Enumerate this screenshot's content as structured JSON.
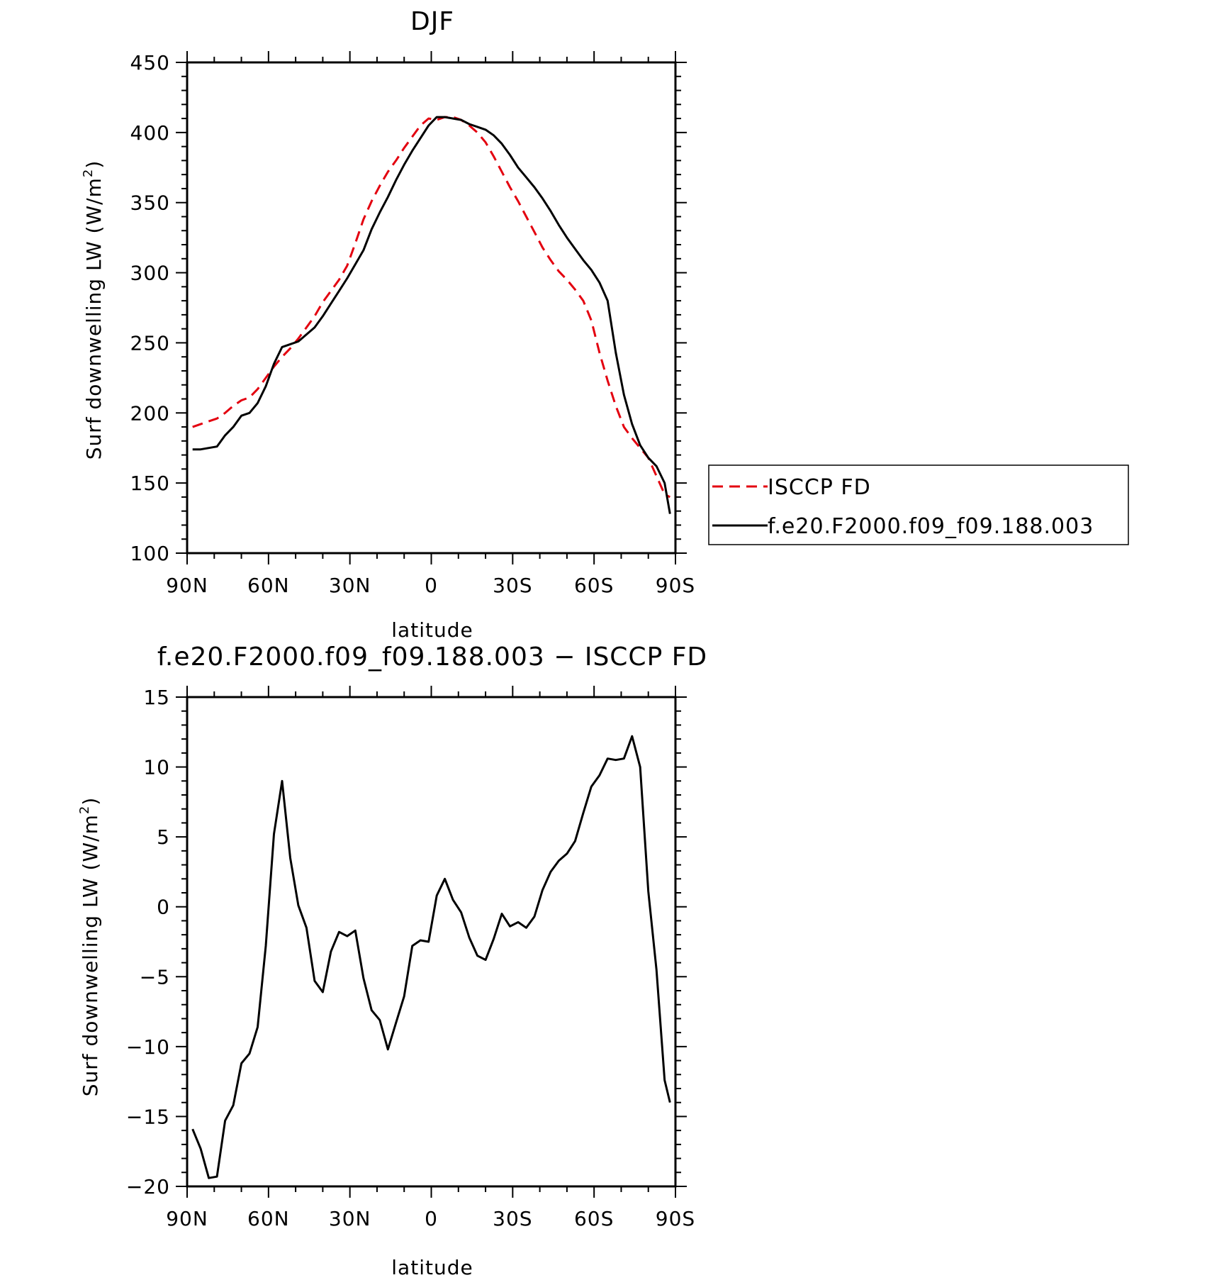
{
  "colors": {
    "model": "#000000",
    "obs": "#e3000f",
    "axes": "#000000"
  },
  "chart_data": [
    {
      "type": "line",
      "title": "DJF",
      "xlabel": "latitude",
      "ylabel_main": "Surf downwelling LW (W/m",
      "ylabel_sup": "2",
      "ylabel_end": ")",
      "xlim": [
        90,
        -90
      ],
      "ylim": [
        100,
        450
      ],
      "xticks": [
        {
          "v": 90,
          "label": "90N"
        },
        {
          "v": 60,
          "label": "60N"
        },
        {
          "v": 30,
          "label": "30N"
        },
        {
          "v": 0,
          "label": "0"
        },
        {
          "v": -30,
          "label": "30S"
        },
        {
          "v": -60,
          "label": "60S"
        },
        {
          "v": -90,
          "label": "90S"
        }
      ],
      "yticks": [
        {
          "v": 100,
          "label": "100"
        },
        {
          "v": 150,
          "label": "150"
        },
        {
          "v": 200,
          "label": "200"
        },
        {
          "v": 250,
          "label": "250"
        },
        {
          "v": 300,
          "label": "300"
        },
        {
          "v": 350,
          "label": "350"
        },
        {
          "v": 400,
          "label": "400"
        },
        {
          "v": 450,
          "label": "450"
        }
      ],
      "grid": false,
      "legend_position": "right of plot",
      "series": [
        {
          "name": "ISCCP FD",
          "color": "#e3000f",
          "dash": "dashed",
          "x": [
            88,
            85,
            82,
            79,
            76,
            73,
            70,
            67,
            64,
            61,
            58,
            55,
            52,
            49,
            46,
            43,
            40,
            37,
            34,
            31,
            28,
            25,
            22,
            19,
            16,
            13,
            10,
            7,
            4,
            1,
            -2,
            -5,
            -8,
            -11,
            -14,
            -17,
            -20,
            -23,
            -26,
            -29,
            -32,
            -35,
            -38,
            -41,
            -44,
            -47,
            -50,
            -53,
            -56,
            -59,
            -62,
            -65,
            -68,
            -71,
            -74,
            -77,
            -80,
            -83,
            -86,
            -88
          ],
          "y": [
            190,
            192,
            194,
            196,
            200,
            205,
            209,
            211,
            217,
            225,
            233,
            240,
            246,
            253,
            261,
            269,
            279,
            287,
            295,
            305,
            321,
            338,
            351,
            362,
            372,
            380,
            389,
            397,
            405,
            410,
            409,
            411,
            411,
            409,
            405,
            400,
            393,
            383,
            372,
            361,
            351,
            340,
            329,
            318,
            309,
            301,
            295,
            288,
            280,
            266,
            243,
            223,
            205,
            190,
            182,
            175,
            168,
            155,
            142,
            140
          ]
        },
        {
          "name": "f.e20.F2000.f09_f09.188.003",
          "color": "#000000",
          "dash": "solid",
          "x": [
            88,
            85,
            82,
            79,
            76,
            73,
            70,
            67,
            64,
            61,
            58,
            55,
            52,
            49,
            46,
            43,
            40,
            37,
            34,
            31,
            28,
            25,
            22,
            19,
            16,
            13,
            10,
            7,
            4,
            1,
            -2,
            -5,
            -8,
            -11,
            -14,
            -17,
            -20,
            -23,
            -26,
            -29,
            -32,
            -35,
            -38,
            -41,
            -44,
            -47,
            -50,
            -53,
            -56,
            -59,
            -62,
            -65,
            -68,
            -71,
            -74,
            -77,
            -80,
            -83,
            -86,
            -88
          ],
          "y": [
            174,
            174,
            175,
            176,
            184,
            190,
            198,
            200,
            207,
            219,
            235,
            247,
            249,
            251,
            256,
            261,
            269,
            278,
            287,
            296,
            306,
            316,
            331,
            343,
            354,
            366,
            377,
            387,
            396,
            405,
            411,
            411,
            410,
            409,
            406,
            404,
            402,
            398,
            392,
            384,
            375,
            368,
            361,
            353,
            344,
            334,
            325,
            317,
            309,
            302,
            293,
            280,
            243,
            213,
            192,
            177,
            168,
            162,
            150,
            128
          ]
        }
      ]
    },
    {
      "type": "line",
      "title": "f.e20.F2000.f09_f09.188.003 − ISCCP FD",
      "xlabel": "latitude",
      "ylabel_main": "Surf downwelling LW (W/m",
      "ylabel_sup": "2",
      "ylabel_end": ")",
      "xlim": [
        90,
        -90
      ],
      "ylim": [
        -20,
        15
      ],
      "xticks": [
        {
          "v": 90,
          "label": "90N"
        },
        {
          "v": 60,
          "label": "60N"
        },
        {
          "v": 30,
          "label": "30N"
        },
        {
          "v": 0,
          "label": "0"
        },
        {
          "v": -30,
          "label": "30S"
        },
        {
          "v": -60,
          "label": "60S"
        },
        {
          "v": -90,
          "label": "90S"
        }
      ],
      "yticks": [
        {
          "v": -20,
          "label": "−20"
        },
        {
          "v": -15,
          "label": "−15"
        },
        {
          "v": -10,
          "label": "−10"
        },
        {
          "v": -5,
          "label": "−5"
        },
        {
          "v": 0,
          "label": "0"
        },
        {
          "v": 5,
          "label": "5"
        },
        {
          "v": 10,
          "label": "10"
        },
        {
          "v": 15,
          "label": "15"
        }
      ],
      "grid": false,
      "series": [
        {
          "color": "#000000",
          "dash": "solid",
          "x": [
            88,
            85,
            82,
            79,
            76,
            73,
            70,
            67,
            64,
            61,
            58,
            55,
            52,
            49,
            46,
            43,
            40,
            37,
            34,
            31,
            28,
            25,
            22,
            19,
            16,
            13,
            10,
            7,
            4,
            1,
            -2,
            -5,
            -8,
            -11,
            -14,
            -17,
            -20,
            -23,
            -26,
            -29,
            -32,
            -35,
            -38,
            -41,
            -44,
            -47,
            -50,
            -53,
            -56,
            -59,
            -62,
            -65,
            -68,
            -71,
            -74,
            -77,
            -80,
            -83,
            -86,
            -88
          ],
          "y": [
            -15.9,
            -17.3,
            -19.4,
            -19.3,
            -15.3,
            -14.2,
            -11.2,
            -10.5,
            -8.6,
            -2.8,
            5.2,
            9,
            3.5,
            0.1,
            -1.5,
            -5.3,
            -6.1,
            -3.2,
            -1.8,
            -2.1,
            -1.7,
            -5.1,
            -7.4,
            -8.1,
            -10.2,
            -8.3,
            -6.4,
            -2.8,
            -2.4,
            -2.5,
            0.8,
            2.0,
            0.5,
            -0.4,
            -2.2,
            -3.5,
            -3.8,
            -2.3,
            -0.5,
            -1.4,
            -1.1,
            -1.5,
            -0.7,
            1.2,
            2.5,
            3.3,
            3.8,
            4.7,
            6.7,
            8.6,
            9.4,
            10.6,
            10.5,
            10.6,
            12.2,
            10.0,
            1.1,
            -4.5,
            -12.4,
            -14.0
          ]
        }
      ]
    }
  ]
}
